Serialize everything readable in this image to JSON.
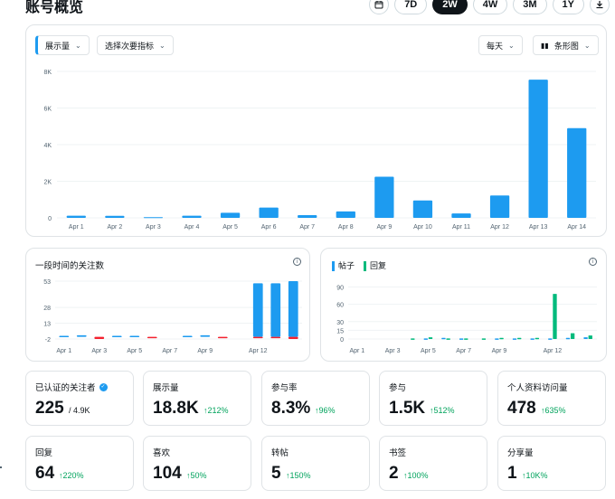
{
  "page": {
    "title": "账号概览"
  },
  "range": {
    "options": [
      "7D",
      "2W",
      "4W",
      "3M",
      "1Y"
    ],
    "selected": "2W",
    "calendar_icon": "calendar-icon",
    "download_icon": "download-icon"
  },
  "main_chart": {
    "metric_label": "展示量",
    "secondary_label": "选择次要指标",
    "interval_label": "每天",
    "chart_type_label": "条形图",
    "chart_data": {
      "type": "bar",
      "categories": [
        "Apr 1",
        "Apr 2",
        "Apr 3",
        "Apr 4",
        "Apr 5",
        "Apr 6",
        "Apr 7",
        "Apr 8",
        "Apr 9",
        "Apr 10",
        "Apr 11",
        "Apr 12",
        "Apr 13",
        "Apr 14"
      ],
      "values": [
        120,
        110,
        40,
        120,
        280,
        560,
        150,
        350,
        2250,
        950,
        240,
        1220,
        7550,
        4900
      ],
      "y_ticks": [
        "0",
        "2K",
        "4K",
        "6K",
        "8K"
      ],
      "ylim": [
        0,
        8000
      ],
      "color": "#1d9bf0",
      "grid": true
    }
  },
  "followers_chart": {
    "title": "一段时间的关注数",
    "chart_data": {
      "type": "bar",
      "categories": [
        "Apr 1",
        "Apr 2",
        "Apr 3",
        "Apr 4",
        "Apr 5",
        "Apr 6",
        "Apr 7",
        "Apr 8",
        "Apr 9",
        "Apr 10",
        "Apr 11",
        "Apr 12",
        "Apr 13",
        "Apr 14"
      ],
      "x_ticks": [
        "Apr 1",
        "Apr 3",
        "Apr 5",
        "Apr 7",
        "Apr 9",
        "Apr 12"
      ],
      "series": [
        {
          "name": "gain",
          "color": "#1d9bf0",
          "values": [
            1,
            1.5,
            0,
            1,
            1,
            0,
            0,
            1,
            1.5,
            0,
            0,
            51,
            51,
            53
          ]
        },
        {
          "name": "loss",
          "color": "#f4212e",
          "values": [
            0,
            0,
            -2,
            0,
            0,
            -1,
            0,
            0,
            0,
            -1,
            0,
            -1,
            -1,
            -2
          ]
        }
      ],
      "y_ticks": [
        "-2",
        "13",
        "28",
        "53"
      ],
      "ylim": [
        -2,
        53
      ],
      "grid": true
    }
  },
  "posts_chart": {
    "legend": [
      "帖子",
      "回复"
    ],
    "colors": {
      "posts": "#1d9bf0",
      "replies": "#00ba7c"
    },
    "chart_data": {
      "type": "bar",
      "categories": [
        "Apr 1",
        "Apr 2",
        "Apr 3",
        "Apr 4",
        "Apr 5",
        "Apr 6",
        "Apr 7",
        "Apr 8",
        "Apr 9",
        "Apr 10",
        "Apr 11",
        "Apr 12",
        "Apr 13",
        "Apr 14"
      ],
      "x_ticks": [
        "Apr 1",
        "Apr 3",
        "Apr 5",
        "Apr 7",
        "Apr 9",
        "Apr 12"
      ],
      "series": [
        {
          "name": "帖子",
          "values": [
            0,
            0,
            0,
            0,
            1,
            2,
            1,
            0,
            1,
            1,
            1,
            1,
            2,
            3
          ]
        },
        {
          "name": "回复",
          "values": [
            0,
            0,
            0,
            1,
            3,
            1,
            1,
            1,
            2,
            2,
            2,
            78,
            10,
            6
          ]
        }
      ],
      "y_ticks": [
        "0",
        "15",
        "30",
        "60",
        "90"
      ],
      "ylim": [
        0,
        100
      ],
      "grid": true
    }
  },
  "stats": [
    {
      "label": "已认证的关注者",
      "value": "225",
      "of": "/ 4.9K",
      "verified": true
    },
    {
      "label": "展示量",
      "value": "18.8K",
      "delta": "↑212%"
    },
    {
      "label": "参与率",
      "value": "8.3%",
      "delta": "↑96%"
    },
    {
      "label": "参与",
      "value": "1.5K",
      "delta": "↑512%"
    },
    {
      "label": "个人资料访问量",
      "value": "478",
      "delta": "↑635%"
    },
    {
      "label": "回复",
      "value": "64",
      "delta": "↑220%"
    },
    {
      "label": "喜欢",
      "value": "104",
      "delta": "↑50%"
    },
    {
      "label": "转帖",
      "value": "5",
      "delta": "↑150%"
    },
    {
      "label": "书签",
      "value": "2",
      "delta": "↑100%"
    },
    {
      "label": "分享量",
      "value": "1",
      "delta": "↑10K%"
    }
  ]
}
